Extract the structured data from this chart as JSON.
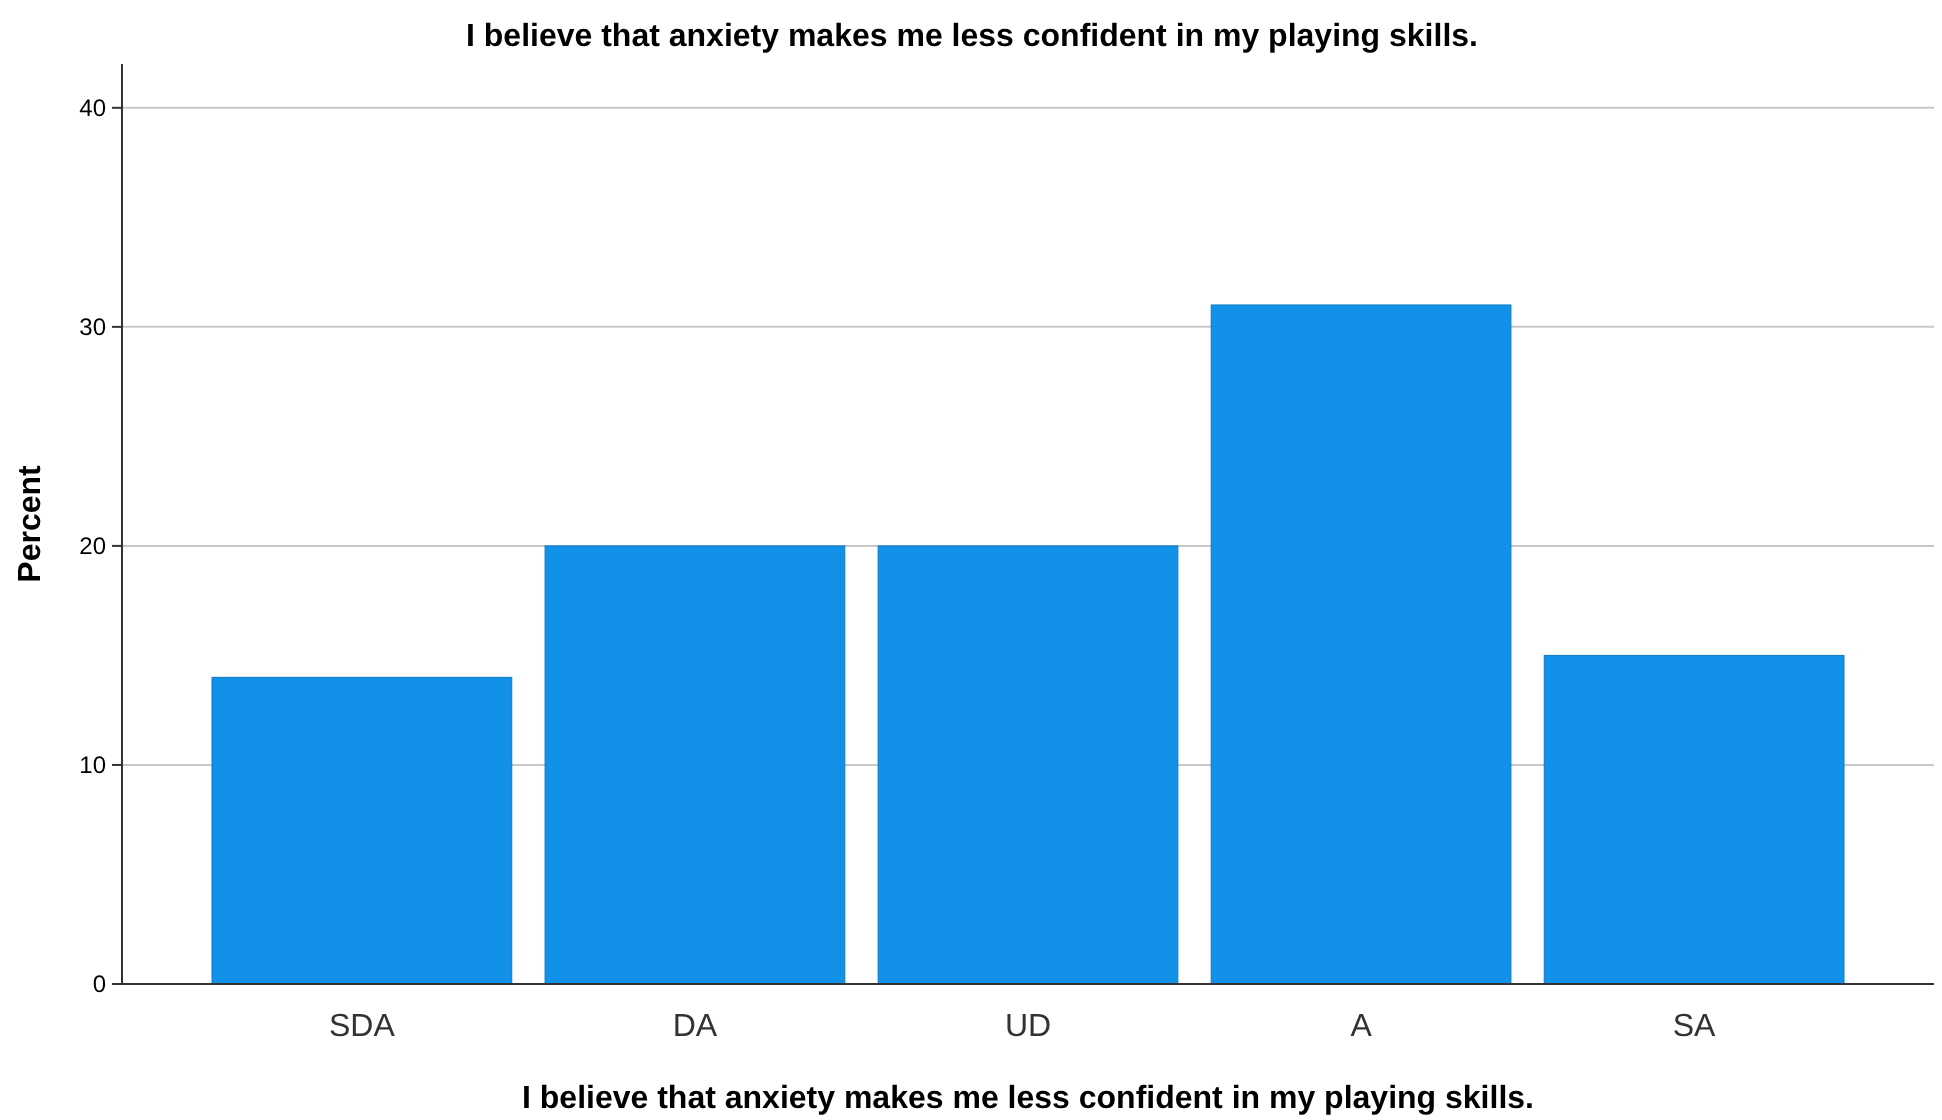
{
  "chart_data": {
    "type": "bar",
    "title": "I believe that anxiety makes me less confident in my playing skills.",
    "xlabel": "I believe that anxiety makes me less confident in my playing skills.",
    "ylabel": "Percent",
    "categories": [
      "SDA",
      "DA",
      "UD",
      "A",
      "SA"
    ],
    "values": [
      14,
      20,
      20,
      31,
      15
    ],
    "color": "#1192e8",
    "ylim": [
      0,
      42
    ],
    "yticks": [
      0,
      10,
      20,
      30,
      40
    ],
    "grid": "y"
  }
}
